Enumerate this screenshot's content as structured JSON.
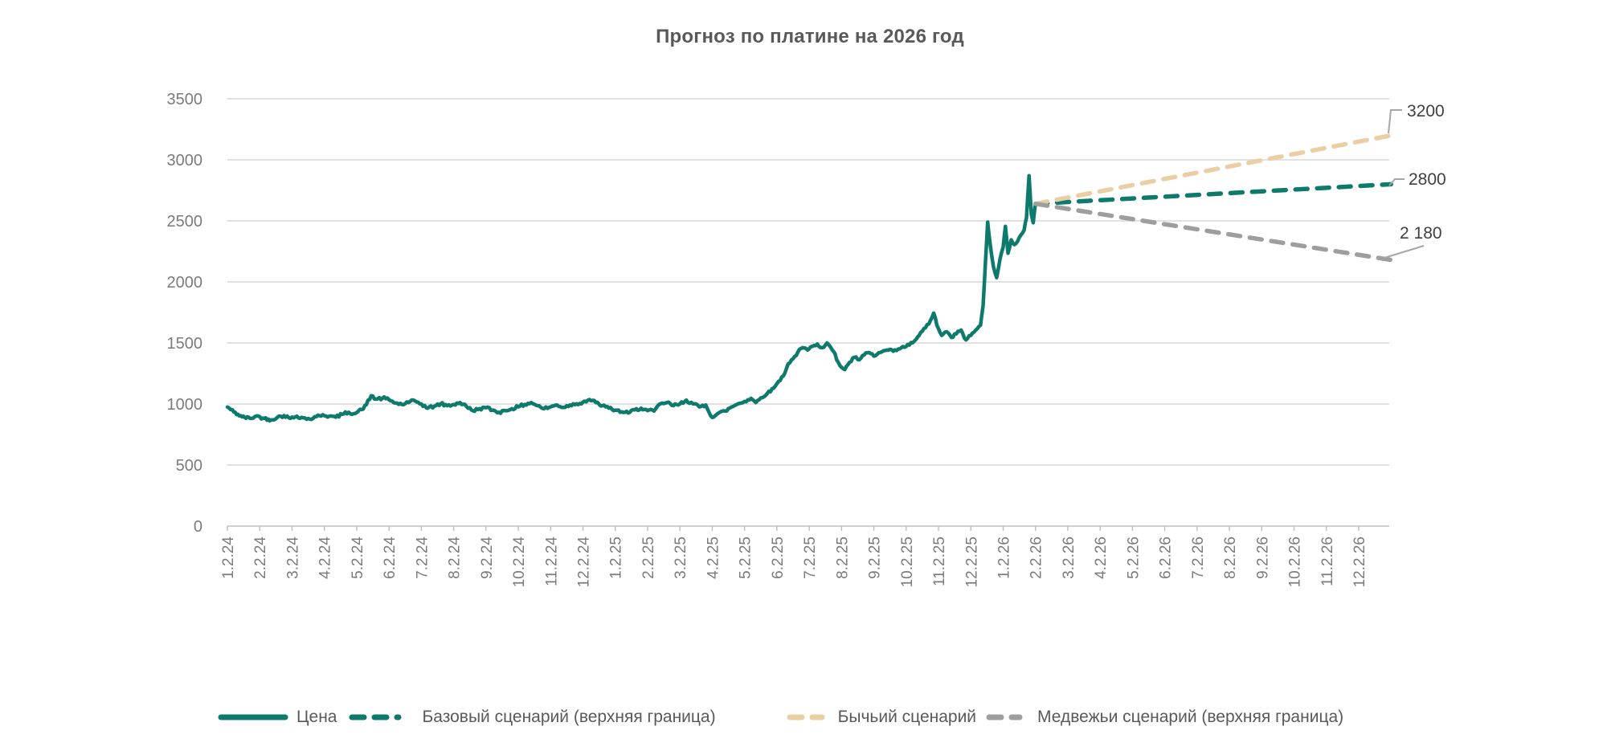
{
  "chart_data": {
    "type": "line",
    "title": "Прогноз по платине на 2026 год",
    "grid": true,
    "y_axis": {
      "min": 0,
      "max": 3500,
      "step": 500,
      "ticks": [
        "0",
        "500",
        "1000",
        "1500",
        "2000",
        "2500",
        "3000",
        "3500"
      ]
    },
    "x_axis": {
      "labels": [
        "1.2.24",
        "2.2.24",
        "3.2.24",
        "4.2.24",
        "5.2.24",
        "6.2.24",
        "7.2.24",
        "8.2.24",
        "9.2.24",
        "10.2.24",
        "11.2.24",
        "12.2.24",
        "1.2.25",
        "2.2.25",
        "3.2.25",
        "4.2.25",
        "5.2.25",
        "6.2.25",
        "7.2.25",
        "8.2.25",
        "9.2.25",
        "10.2.25",
        "11.2.25",
        "12.2.25",
        "1.2.26",
        "2.2.26",
        "3.2.26",
        "4.2.26",
        "5.2.26",
        "6.2.26",
        "7.2.26",
        "8.2.26",
        "9.2.26",
        "10.2.26",
        "11.2.26",
        "12.2.26"
      ]
    },
    "series": [
      {
        "name": "Цена",
        "style": "solid",
        "color": "#0d7a6c",
        "points": [
          [
            0,
            975
          ],
          [
            0.2,
            935
          ],
          [
            0.45,
            895
          ],
          [
            0.7,
            882
          ],
          [
            0.9,
            902
          ],
          [
            1.1,
            885
          ],
          [
            1.35,
            870
          ],
          [
            1.55,
            892
          ],
          [
            1.75,
            905
          ],
          [
            1.95,
            882
          ],
          [
            2.15,
            900
          ],
          [
            2.35,
            886
          ],
          [
            2.55,
            876
          ],
          [
            2.75,
            896
          ],
          [
            2.95,
            912
          ],
          [
            3.15,
            900
          ],
          [
            3.35,
            892
          ],
          [
            3.55,
            916
          ],
          [
            3.75,
            932
          ],
          [
            3.95,
            922
          ],
          [
            4.15,
            955
          ],
          [
            4.3,
            995
          ],
          [
            4.45,
            1068
          ],
          [
            4.6,
            1040
          ],
          [
            4.8,
            1048
          ],
          [
            5,
            1035
          ],
          [
            5.2,
            1008
          ],
          [
            5.4,
            996
          ],
          [
            5.6,
            1012
          ],
          [
            5.8,
            1026
          ],
          [
            6,
            1000
          ],
          [
            6.2,
            966
          ],
          [
            6.4,
            982
          ],
          [
            6.6,
            1002
          ],
          [
            6.8,
            986
          ],
          [
            7,
            996
          ],
          [
            7.2,
            1012
          ],
          [
            7.4,
            978
          ],
          [
            7.6,
            945
          ],
          [
            7.8,
            962
          ],
          [
            8,
            970
          ],
          [
            8.2,
            950
          ],
          [
            8.4,
            932
          ],
          [
            8.6,
            946
          ],
          [
            8.8,
            962
          ],
          [
            9,
            976
          ],
          [
            9.2,
            996
          ],
          [
            9.4,
            1012
          ],
          [
            9.6,
            986
          ],
          [
            9.8,
            962
          ],
          [
            10,
            976
          ],
          [
            10.2,
            992
          ],
          [
            10.4,
            972
          ],
          [
            10.6,
            992
          ],
          [
            10.8,
            1002
          ],
          [
            11,
            1016
          ],
          [
            11.2,
            1036
          ],
          [
            11.4,
            1012
          ],
          [
            11.6,
            986
          ],
          [
            11.8,
            966
          ],
          [
            12,
            950
          ],
          [
            12.2,
            936
          ],
          [
            12.4,
            926
          ],
          [
            12.6,
            952
          ],
          [
            12.8,
            966
          ],
          [
            13,
            946
          ],
          [
            13.2,
            942
          ],
          [
            13.4,
            1002
          ],
          [
            13.6,
            1012
          ],
          [
            13.8,
            986
          ],
          [
            14,
            1000
          ],
          [
            14.2,
            1032
          ],
          [
            14.4,
            1002
          ],
          [
            14.6,
            976
          ],
          [
            14.8,
            992
          ],
          [
            15,
            890
          ],
          [
            15.2,
            926
          ],
          [
            15.4,
            942
          ],
          [
            15.6,
            976
          ],
          [
            15.8,
            1002
          ],
          [
            16,
            1022
          ],
          [
            16.2,
            1046
          ],
          [
            16.35,
            1012
          ],
          [
            16.5,
            1050
          ],
          [
            16.7,
            1085
          ],
          [
            16.9,
            1130
          ],
          [
            17.05,
            1185
          ],
          [
            17.2,
            1230
          ],
          [
            17.35,
            1330
          ],
          [
            17.5,
            1370
          ],
          [
            17.65,
            1425
          ],
          [
            17.8,
            1462
          ],
          [
            17.95,
            1442
          ],
          [
            18.1,
            1472
          ],
          [
            18.25,
            1492
          ],
          [
            18.4,
            1462
          ],
          [
            18.55,
            1500
          ],
          [
            18.75,
            1430
          ],
          [
            18.95,
            1315
          ],
          [
            19.1,
            1282
          ],
          [
            19.25,
            1342
          ],
          [
            19.4,
            1382
          ],
          [
            19.55,
            1362
          ],
          [
            19.7,
            1402
          ],
          [
            19.85,
            1422
          ],
          [
            20,
            1392
          ],
          [
            20.2,
            1422
          ],
          [
            20.4,
            1442
          ],
          [
            20.6,
            1432
          ],
          [
            20.8,
            1452
          ],
          [
            21,
            1472
          ],
          [
            21.2,
            1502
          ],
          [
            21.4,
            1562
          ],
          [
            21.6,
            1625
          ],
          [
            21.75,
            1685
          ],
          [
            21.85,
            1745
          ],
          [
            21.95,
            1645
          ],
          [
            22.1,
            1562
          ],
          [
            22.25,
            1592
          ],
          [
            22.4,
            1545
          ],
          [
            22.55,
            1575
          ],
          [
            22.7,
            1605
          ],
          [
            22.85,
            1525
          ],
          [
            23,
            1562
          ],
          [
            23.15,
            1605
          ],
          [
            23.3,
            1645
          ],
          [
            23.38,
            1805
          ],
          [
            23.45,
            2155
          ],
          [
            23.52,
            2490
          ],
          [
            23.6,
            2305
          ],
          [
            23.7,
            2125
          ],
          [
            23.8,
            2035
          ],
          [
            23.9,
            2185
          ],
          [
            24,
            2285
          ],
          [
            24.07,
            2455
          ],
          [
            24.15,
            2235
          ],
          [
            24.25,
            2345
          ],
          [
            24.35,
            2305
          ],
          [
            24.45,
            2335
          ],
          [
            24.55,
            2385
          ],
          [
            24.65,
            2425
          ],
          [
            24.72,
            2525
          ],
          [
            24.8,
            2870
          ],
          [
            24.87,
            2555
          ],
          [
            24.93,
            2485
          ],
          [
            25,
            2640
          ]
        ]
      },
      {
        "name": "Базовый сценарий (верхняя граница)",
        "style": "dashed",
        "color": "#0d7a6c",
        "points": [
          [
            25,
            2640
          ],
          [
            36,
            2800
          ]
        ],
        "end_label": "2800"
      },
      {
        "name": "Бычьий сценарий",
        "style": "dashed",
        "color": "#e9cfa3",
        "points": [
          [
            25,
            2640
          ],
          [
            36,
            3200
          ]
        ],
        "end_label": "3200"
      },
      {
        "name": "Медвежьи сценарий (верхняя граница)",
        "style": "dashed",
        "color": "#9e9e9e",
        "points": [
          [
            25,
            2640
          ],
          [
            36,
            2180
          ]
        ],
        "end_label": "2 180"
      }
    ],
    "annotations": [
      {
        "text": "3200",
        "series": "Бычьий сценарий"
      },
      {
        "text": "2800",
        "series": "Базовый сценарий (верхняя граница)"
      },
      {
        "text": "2 180",
        "series": "Медвежьи сценарий (верхняя граница)"
      }
    ],
    "legend_position": "bottom"
  },
  "legend": {
    "items": [
      {
        "label": "Цена",
        "color": "#0d7a6c",
        "style": "solid"
      },
      {
        "label": "Базовый сценарий (верхняя граница)",
        "color": "#0d7a6c",
        "style": "dashed"
      },
      {
        "label": "Бычьий сценарий",
        "color": "#e9cfa3",
        "style": "dashed"
      },
      {
        "label": "Медвежьи сценарий (верхняя граница)",
        "color": "#9e9e9e",
        "style": "dashed"
      }
    ]
  },
  "colors": {
    "price": "#0d7a6c",
    "base_scenario": "#0d7a6c",
    "bull_scenario": "#e9cfa3",
    "bear_scenario": "#9e9e9e",
    "gridline": "#d9d9d9",
    "axis_line": "#bfbfbf",
    "tick_text": "#7b7b7b",
    "title_text": "#595959",
    "callout_text": "#404040",
    "callout_line": "#a6a6a6",
    "background": "#ffffff"
  }
}
